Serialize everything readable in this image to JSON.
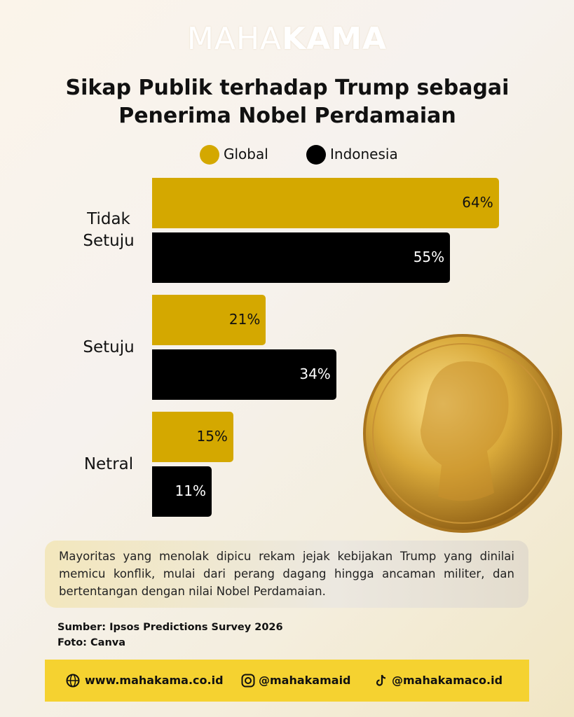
{
  "brand": {
    "light": "MAHA",
    "bold": "KAMA"
  },
  "chart_data": {
    "type": "bar",
    "orientation": "horizontal",
    "title": "Sikap Publik terhadap Trump sebagai Penerima Nobel Perdamaian",
    "categories": [
      "Tidak Setuju",
      "Setuju",
      "Netral"
    ],
    "series": [
      {
        "name": "Global",
        "color": "#d4a800",
        "values": [
          64,
          21,
          15
        ],
        "value_labels": [
          "64%",
          "21%",
          "15%"
        ]
      },
      {
        "name": "Indonesia",
        "color": "#000000",
        "values": [
          55,
          34,
          11
        ],
        "value_labels": [
          "55%",
          "34%",
          "11%"
        ]
      }
    ]
  },
  "note": "Mayoritas yang menolak dipicu rekam jejak kebijakan Trump yang dinilai memicu konflik, mulai dari perang dagang hingga ancaman militer, dan bertentangan dengan nilai Nobel Perdamaian.",
  "source": "Sumber:  Ipsos Predictions Survey 2026",
  "photo": "Foto: Canva",
  "footer": {
    "website": "www.mahakama.co.id",
    "instagram": "@mahakamaid",
    "tiktok": "@mahakamaco.id"
  }
}
